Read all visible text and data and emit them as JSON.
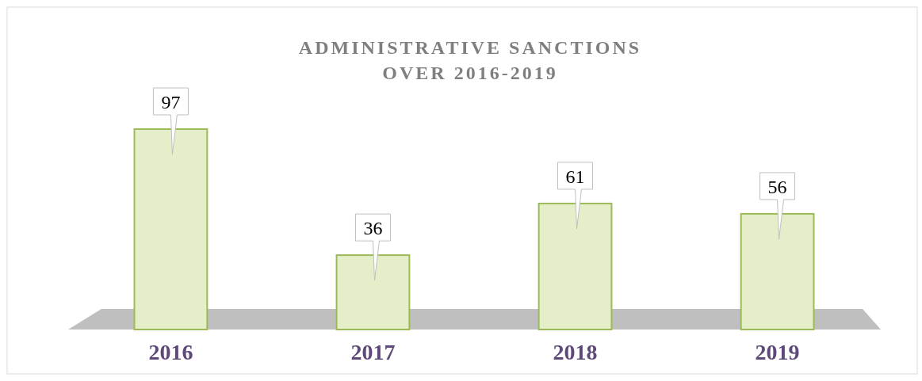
{
  "chart_data": {
    "type": "bar",
    "title": "ADMINISTRATIVE SANCTIONS\nOVER 2016-2019",
    "categories": [
      "2016",
      "2017",
      "2018",
      "2019"
    ],
    "values": [
      97,
      36,
      61,
      56
    ],
    "color": "#e4efc9",
    "data_labels": true
  }
}
